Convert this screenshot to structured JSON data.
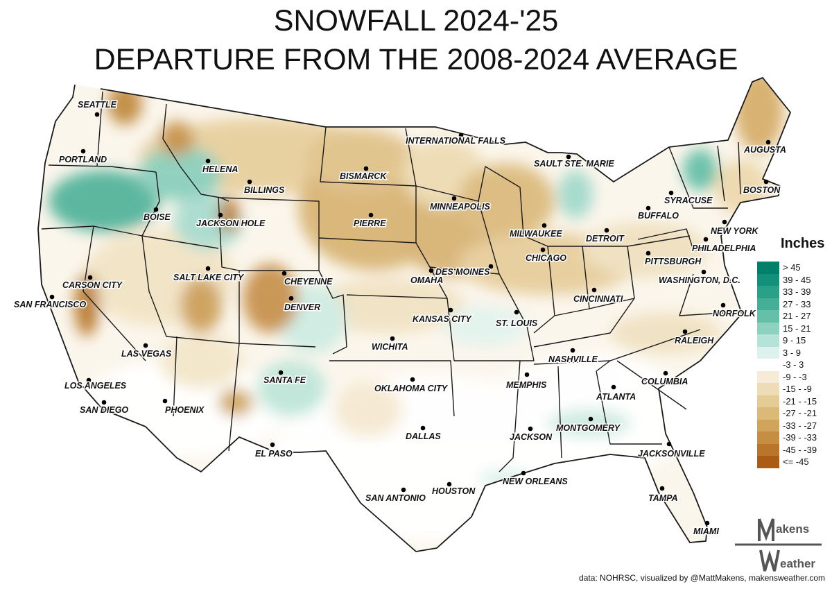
{
  "title_line1": "SNOWFALL 2024-'25",
  "title_line2": "DEPARTURE FROM THE 2008-2024 AVERAGE",
  "credit": "data: NOHRSC, visualized by @MattMakens, makensweather.com",
  "logo": {
    "line1": "akens",
    "line2": "eather",
    "letter1": "M",
    "letter2": "W"
  },
  "legend": {
    "title": "Inches",
    "bins": [
      {
        "label": "> 45",
        "color": "#00806a"
      },
      {
        "label": "39 - 45",
        "color": "#129079"
      },
      {
        "label": "33 - 39",
        "color": "#2aa088"
      },
      {
        "label": "27 - 33",
        "color": "#45ae97"
      },
      {
        "label": "21 - 27",
        "color": "#66bfa8"
      },
      {
        "label": "15 - 21",
        "color": "#8dd2bf"
      },
      {
        "label": "9 - 15",
        "color": "#b6e3d7"
      },
      {
        "label": "3 - 9",
        "color": "#ddf2ec"
      },
      {
        "label": "-3 - 3",
        "color": "#ffffff"
      },
      {
        "label": "-9 - -3",
        "color": "#f6ebd6"
      },
      {
        "label": "-15 - -9",
        "color": "#eedcb6"
      },
      {
        "label": "-21 - -15",
        "color": "#e5cc96"
      },
      {
        "label": "-27 - -21",
        "color": "#dbba77"
      },
      {
        "label": "-33 - -27",
        "color": "#d0a45a"
      },
      {
        "label": "-39 - -33",
        "color": "#c58e42"
      },
      {
        "label": "-45 - -39",
        "color": "#b9762b"
      },
      {
        "label": "<= -45",
        "color": "#aa5c16"
      }
    ]
  },
  "cities": [
    {
      "name": "SEATTLE"
    },
    {
      "name": "PORTLAND"
    },
    {
      "name": "HELENA"
    },
    {
      "name": "BILLINGS"
    },
    {
      "name": "BOISE"
    },
    {
      "name": "JACKSON HOLE"
    },
    {
      "name": "BISMARCK"
    },
    {
      "name": "INTERNATIONAL FALLS"
    },
    {
      "name": "PIERRE"
    },
    {
      "name": "MINNEAPOLIS"
    },
    {
      "name": "SAULT STE. MARIE"
    },
    {
      "name": "AUGUSTA"
    },
    {
      "name": "SYRACUSE"
    },
    {
      "name": "BOSTON"
    },
    {
      "name": "BUFFALO"
    },
    {
      "name": "NEW YORK"
    },
    {
      "name": "PHILADELPHIA"
    },
    {
      "name": "MILWAUKEE"
    },
    {
      "name": "DETROIT"
    },
    {
      "name": "CHICAGO"
    },
    {
      "name": "PITTSBURGH"
    },
    {
      "name": "WASHINGTON, D.C."
    },
    {
      "name": "CARSON CITY"
    },
    {
      "name": "SAN FRANCISCO"
    },
    {
      "name": "SALT LAKE CITY"
    },
    {
      "name": "CHEYENNE"
    },
    {
      "name": "DENVER"
    },
    {
      "name": "DES MOINES"
    },
    {
      "name": "OMAHA"
    },
    {
      "name": "CINCINNATI"
    },
    {
      "name": "KANSAS CITY"
    },
    {
      "name": "ST. LOUIS"
    },
    {
      "name": "NORFOLK"
    },
    {
      "name": "LAS VEGAS"
    },
    {
      "name": "WICHITA"
    },
    {
      "name": "RALEIGH"
    },
    {
      "name": "NASHVILLE"
    },
    {
      "name": "LOS ANGELES"
    },
    {
      "name": "SANTA FE"
    },
    {
      "name": "OKLAHOMA CITY"
    },
    {
      "name": "MEMPHIS"
    },
    {
      "name": "COLUMBIA"
    },
    {
      "name": "SAN DIEGO"
    },
    {
      "name": "PHOENIX"
    },
    {
      "name": "ATLANTA"
    },
    {
      "name": "DALLAS"
    },
    {
      "name": "MONTGOMERY"
    },
    {
      "name": "JACKSON"
    },
    {
      "name": "EL PASO"
    },
    {
      "name": "JACKSONVILLE"
    },
    {
      "name": "NEW ORLEANS"
    },
    {
      "name": "SAN ANTONIO"
    },
    {
      "name": "HOUSTON"
    },
    {
      "name": "TAMPA"
    },
    {
      "name": "MIAMI"
    }
  ]
}
